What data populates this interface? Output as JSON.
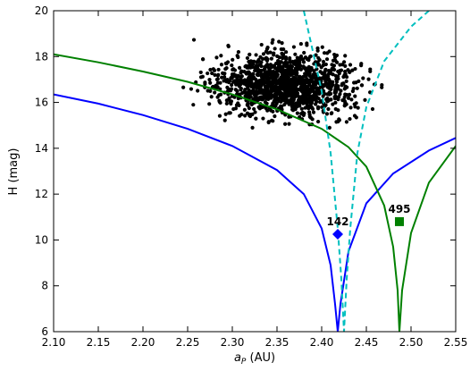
{
  "chart_data": {
    "type": "scatter",
    "xlabel_main": "a",
    "xlabel_sub": "P",
    "xlabel_unit": " (AU)",
    "ylabel": "H (mag)",
    "xlim": [
      2.1,
      2.55
    ],
    "ylim": [
      6,
      20
    ],
    "x_ticks": [
      2.1,
      2.15,
      2.2,
      2.25,
      2.3,
      2.35,
      2.4,
      2.45,
      2.5,
      2.55
    ],
    "x_tick_labels": [
      "2.10",
      "2.15",
      "2.20",
      "2.25",
      "2.30",
      "2.35",
      "2.40",
      "2.45",
      "2.50",
      "2.55"
    ],
    "y_ticks": [
      6,
      8,
      10,
      12,
      14,
      16,
      18,
      20
    ],
    "y_tick_labels": [
      "6",
      "8",
      "10",
      "12",
      "14",
      "16",
      "18",
      "20"
    ],
    "grid": false,
    "scatter": {
      "color": "#000000",
      "count": 1400,
      "x_range": [
        2.16,
        2.49
      ],
      "y_range": [
        12.3,
        18.8
      ],
      "note_center": [
        2.36,
        16.8
      ]
    },
    "curves": [
      {
        "color": "#0000ff",
        "style": "solid",
        "center": 2.418,
        "points": [
          [
            2.1,
            16.35
          ],
          [
            2.15,
            15.95
          ],
          [
            2.2,
            15.45
          ],
          [
            2.25,
            14.85
          ],
          [
            2.3,
            14.1
          ],
          [
            2.35,
            13.05
          ],
          [
            2.38,
            12.0
          ],
          [
            2.4,
            10.5
          ],
          [
            2.41,
            8.9
          ],
          [
            2.415,
            7.2
          ],
          [
            2.418,
            6.0
          ],
          [
            2.421,
            7.2
          ],
          [
            2.43,
            9.5
          ],
          [
            2.45,
            11.6
          ],
          [
            2.48,
            12.9
          ],
          [
            2.52,
            13.9
          ],
          [
            2.55,
            14.45
          ]
        ]
      },
      {
        "color": "#008000",
        "style": "solid",
        "center": 2.487,
        "points": [
          [
            2.1,
            18.1
          ],
          [
            2.15,
            17.75
          ],
          [
            2.2,
            17.35
          ],
          [
            2.25,
            16.9
          ],
          [
            2.3,
            16.35
          ],
          [
            2.35,
            15.7
          ],
          [
            2.4,
            14.85
          ],
          [
            2.43,
            14.05
          ],
          [
            2.45,
            13.2
          ],
          [
            2.47,
            11.5
          ],
          [
            2.48,
            9.7
          ],
          [
            2.485,
            7.8
          ],
          [
            2.487,
            6.0
          ],
          [
            2.49,
            7.8
          ],
          [
            2.5,
            10.3
          ],
          [
            2.52,
            12.5
          ],
          [
            2.55,
            14.1
          ]
        ]
      },
      {
        "color": "#00bfbf",
        "style": "dashed",
        "center": 2.425,
        "points": [
          [
            2.38,
            20.0
          ],
          [
            2.4,
            16.5
          ],
          [
            2.41,
            13.8
          ],
          [
            2.418,
            10.5
          ],
          [
            2.422,
            8.3
          ],
          [
            2.425,
            6.0
          ],
          [
            2.428,
            8.3
          ],
          [
            2.432,
            10.5
          ],
          [
            2.44,
            13.8
          ],
          [
            2.45,
            15.8
          ],
          [
            2.47,
            17.8
          ],
          [
            2.5,
            19.3
          ],
          [
            2.52,
            20.0
          ]
        ]
      }
    ],
    "markers": [
      {
        "label": "142",
        "x": 2.418,
        "y": 10.25,
        "shape": "diamond",
        "color": "#0000ff"
      },
      {
        "label": "495",
        "x": 2.487,
        "y": 10.8,
        "shape": "square",
        "color": "#008000"
      }
    ]
  }
}
